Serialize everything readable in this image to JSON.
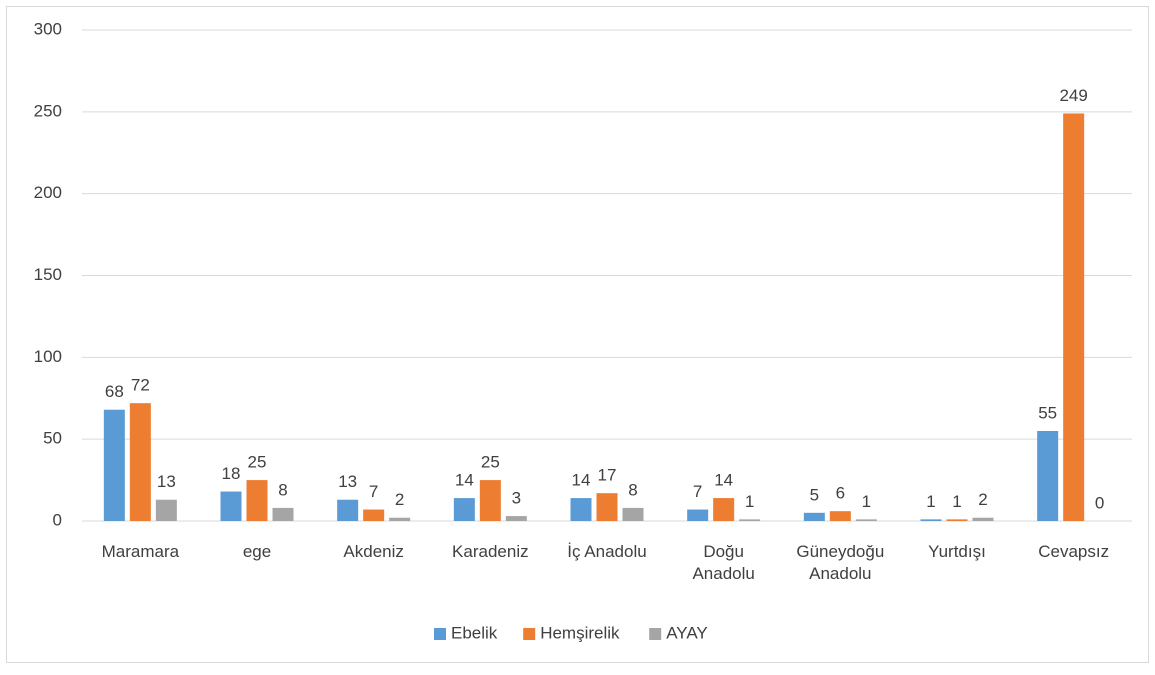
{
  "chart_data": {
    "type": "bar",
    "categories": [
      "Maramara",
      "ege",
      "Akdeniz",
      "Karadeniz",
      "İç Anadolu",
      "Doğu Anadolu",
      "Güneydoğu Anadolu",
      "Yurtdışı",
      "Cevapsız"
    ],
    "series": [
      {
        "name": "Ebelik",
        "color": "#5b9bd5",
        "values": [
          68,
          18,
          13,
          14,
          14,
          7,
          5,
          1,
          55
        ]
      },
      {
        "name": "Hemşirelik",
        "color": "#ed7d31",
        "values": [
          72,
          25,
          7,
          25,
          17,
          14,
          6,
          1,
          249
        ]
      },
      {
        "name": "AYAY",
        "color": "#a5a5a5",
        "values": [
          13,
          8,
          2,
          3,
          8,
          1,
          1,
          2,
          0
        ]
      }
    ],
    "ylim": [
      0,
      300
    ],
    "yticks": [
      0,
      50,
      100,
      150,
      200,
      250,
      300
    ],
    "grid": true,
    "legend": "bottom"
  }
}
